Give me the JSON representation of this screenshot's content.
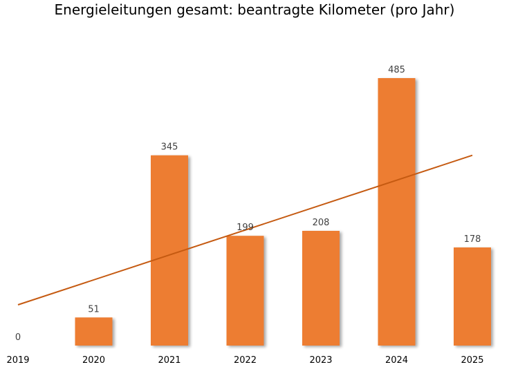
{
  "chart_data": {
    "type": "bar",
    "title": "Energieleitungen gesamt: beantragte Kilometer (pro Jahr)",
    "xlabel": "",
    "ylabel": "",
    "categories": [
      "2019",
      "2020",
      "2021",
      "2022",
      "2023",
      "2024",
      "2025"
    ],
    "values": [
      0,
      51,
      345,
      199,
      208,
      485,
      178
    ],
    "data_labels": [
      "0",
      "51",
      "345",
      "199",
      "208",
      "485",
      "178"
    ],
    "ylim": [
      0,
      485
    ],
    "grid": false,
    "legend": "none",
    "trendline": {
      "type": "linear"
    },
    "colors": {
      "bar": "#ED7D31",
      "trendline": "#C55A11",
      "bar_shadow": "#c8c8c8"
    }
  }
}
